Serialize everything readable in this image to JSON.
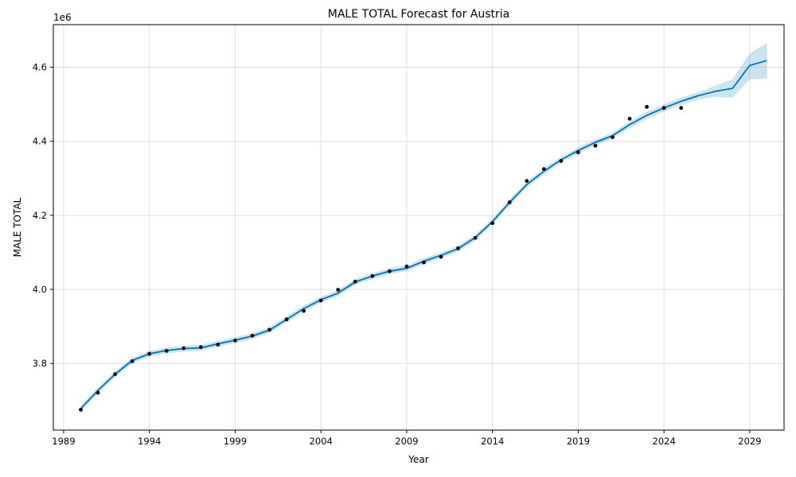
{
  "chart_data": {
    "type": "line",
    "title": "MALE TOTAL Forecast for Austria",
    "xlabel": "Year",
    "ylabel": "MALE TOTAL",
    "y_offset_label": "1e6",
    "xlim": [
      1988.4,
      2031.0
    ],
    "ylim": [
      3620000,
      4715000
    ],
    "x_ticks": [
      1989,
      1994,
      1999,
      2004,
      2009,
      2014,
      2019,
      2024,
      2029
    ],
    "x_tick_labels": [
      "1989",
      "1994",
      "1999",
      "2004",
      "2009",
      "2014",
      "2019",
      "2024",
      "2029"
    ],
    "y_ticks": [
      3800000,
      4000000,
      4200000,
      4400000,
      4600000
    ],
    "y_tick_labels": [
      "3.8",
      "4.0",
      "4.2",
      "4.4",
      "4.6"
    ],
    "grid": true,
    "colors": {
      "forecast_line": "#0072B2",
      "interval_fill": "#0072B2",
      "observed_points": "#000000"
    },
    "observed": {
      "x": [
        1990,
        1991,
        1992,
        1993,
        1994,
        1995,
        1996,
        1997,
        1998,
        1999,
        2000,
        2001,
        2002,
        2003,
        2004,
        2005,
        2006,
        2007,
        2008,
        2009,
        2010,
        2011,
        2012,
        2013,
        2014,
        2015,
        2016,
        2017,
        2018,
        2019,
        2020,
        2021,
        2022,
        2023,
        2024,
        2025
      ],
      "y": [
        3675000,
        3721000,
        3771000,
        3806000,
        3826000,
        3834000,
        3841000,
        3844000,
        3851000,
        3862000,
        3875000,
        3891000,
        3919000,
        3942000,
        3970000,
        3999000,
        4021000,
        4036000,
        4049000,
        4062000,
        4073000,
        4088000,
        4111000,
        4139000,
        4179000,
        4235000,
        4293000,
        4325000,
        4347000,
        4370000,
        4388000,
        4411000,
        4461000,
        4493000,
        4490000,
        4490000
      ]
    },
    "forecast": {
      "x": [
        1990,
        1991,
        1992,
        1993,
        1994,
        1995,
        1996,
        1997,
        1998,
        1999,
        2000,
        2001,
        2002,
        2003,
        2004,
        2005,
        2006,
        2007,
        2008,
        2009,
        2010,
        2011,
        2012,
        2013,
        2014,
        2015,
        2016,
        2017,
        2018,
        2019,
        2020,
        2021,
        2022,
        2023,
        2024,
        2025,
        2026,
        2027,
        2028,
        2029,
        2030
      ],
      "yhat": [
        3678000,
        3727000,
        3771000,
        3808000,
        3826000,
        3835000,
        3840000,
        3842000,
        3853000,
        3863000,
        3874000,
        3890000,
        3919000,
        3948000,
        3972000,
        3990000,
        4020000,
        4036000,
        4049000,
        4057000,
        4076000,
        4092000,
        4110000,
        4140000,
        4183000,
        4235000,
        4283000,
        4319000,
        4350000,
        4375000,
        4397000,
        4415000,
        4445000,
        4470000,
        4490000,
        4508000,
        4523000,
        4535000,
        4543000,
        4605000,
        4618000
      ],
      "lower": [
        3670000,
        3719000,
        3763000,
        3800000,
        3818000,
        3827000,
        3832000,
        3834000,
        3845000,
        3855000,
        3866000,
        3882000,
        3911000,
        3940000,
        3964000,
        3982000,
        4012000,
        4028000,
        4041000,
        4049000,
        4068000,
        4084000,
        4102000,
        4132000,
        4175000,
        4227000,
        4275000,
        4311000,
        4342000,
        4367000,
        4389000,
        4407000,
        4436000,
        4460000,
        4480000,
        4498000,
        4513000,
        4520000,
        4518000,
        4567000,
        4570000
      ],
      "upper": [
        3686000,
        3735000,
        3779000,
        3816000,
        3834000,
        3843000,
        3848000,
        3850000,
        3861000,
        3871000,
        3882000,
        3898000,
        3927000,
        3956000,
        3980000,
        3998000,
        4028000,
        4044000,
        4057000,
        4065000,
        4084000,
        4100000,
        4118000,
        4148000,
        4191000,
        4243000,
        4291000,
        4327000,
        4358000,
        4383000,
        4405000,
        4423000,
        4454000,
        4480000,
        4500000,
        4518000,
        4533000,
        4550000,
        4568000,
        4638000,
        4665000
      ]
    }
  }
}
